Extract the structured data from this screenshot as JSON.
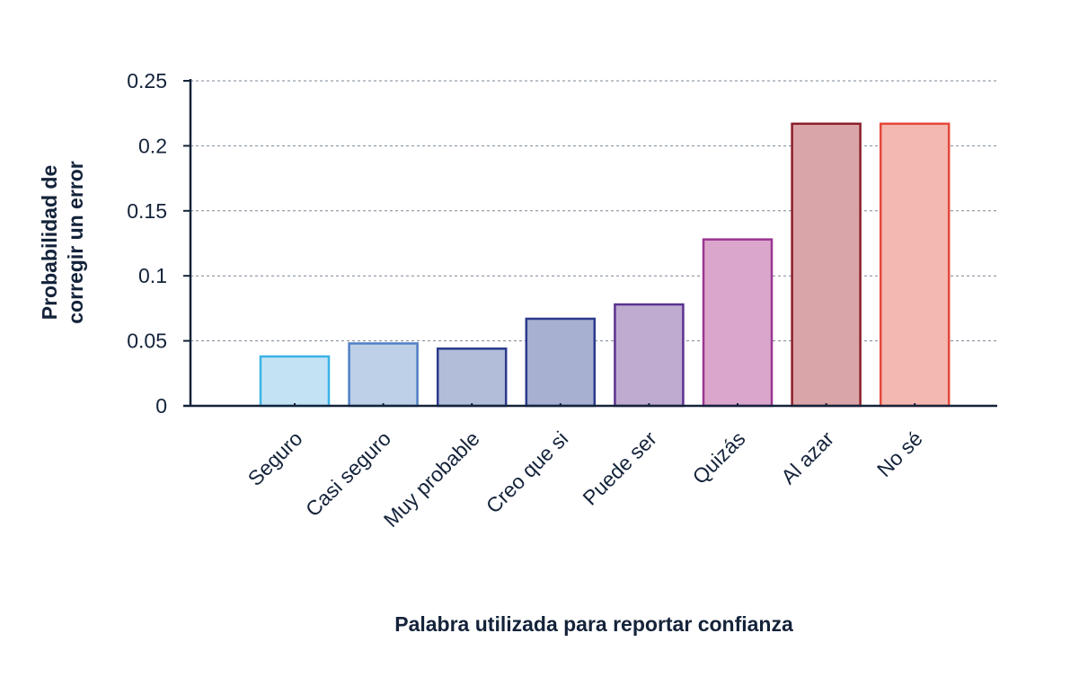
{
  "chart_data": {
    "type": "bar",
    "title": "",
    "xlabel": "Palabra utilizada para reportar confianza",
    "ylabel": "Probabilidad de corregir un error",
    "categories": [
      "Seguro",
      "Casi seguro",
      "Muy probable",
      "Creo que si",
      "Puede ser",
      "Quizás",
      "Al azar",
      "No sé"
    ],
    "values": [
      0.038,
      0.048,
      0.044,
      0.067,
      0.078,
      0.128,
      0.217,
      0.217
    ],
    "ylim": [
      0,
      0.25
    ],
    "yticks": [
      0,
      0.05,
      0.1,
      0.15,
      0.2,
      0.25
    ],
    "ytick_labels": [
      "0",
      "0.05",
      "0.1",
      "0.15",
      "0.2",
      "0.25"
    ],
    "grid": "horizontal dashed",
    "fill_colors": [
      "#c3e3f5",
      "#bdd0e8",
      "#b2bdd9",
      "#a7b0d0",
      "#bfabd0",
      "#dba6cb",
      "#d9a5a8",
      "#f3b8b0"
    ],
    "stroke_colors": [
      "#3bb3e6",
      "#4f7fc4",
      "#2b3a8c",
      "#2b3a8c",
      "#5b3290",
      "#9a3593",
      "#8c1f2a",
      "#e5473b"
    ]
  }
}
